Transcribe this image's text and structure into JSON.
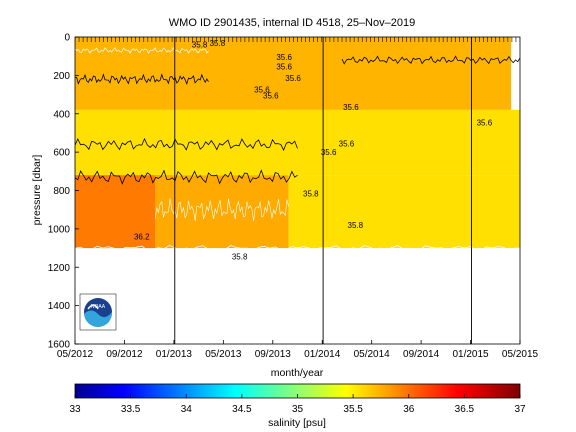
{
  "chart_data": {
    "type": "heatmap",
    "title": "WMO ID 2901435, internal ID 4518, 25–Nov–2019",
    "xlabel": "month/year",
    "ylabel": "pressure [dbar]",
    "x_ticks": [
      "05/2012",
      "09/2012",
      "01/2013",
      "05/2013",
      "09/2013",
      "01/2014",
      "05/2014",
      "09/2014",
      "01/2015",
      "05/2015"
    ],
    "y_ticks": [
      "0",
      "200",
      "400",
      "600",
      "800",
      "1000",
      "1200",
      "1400",
      "1600"
    ],
    "ylim": [
      1600,
      0
    ],
    "xlim": [
      "2012-05",
      "2015-05"
    ],
    "year_boundaries": [
      "2013-01",
      "2014-01",
      "2015-01"
    ],
    "colorbar": {
      "label": "salinity [psu]",
      "ticks": [
        "33",
        "33.5",
        "34",
        "34.5",
        "35",
        "35.5",
        "36",
        "36.5",
        "37"
      ],
      "range": [
        33,
        37
      ],
      "colormap": "jet"
    },
    "contour_labels": [
      "35.8",
      "35.8",
      "35.6",
      "35.6",
      "35.6",
      "35.6",
      "35.6",
      "35.6",
      "35.6",
      "35.6",
      "35.8",
      "35.8",
      "35.8",
      "35.6",
      "36.2"
    ],
    "regions": [
      {
        "t0": 0.0,
        "t1": 0.98,
        "p0": 0,
        "p1": 380,
        "salinity": 35.85,
        "color": "#ffb400"
      },
      {
        "t0": 0.0,
        "t1": 0.22,
        "p0": 560,
        "p1": 1100,
        "salinity": 35.9,
        "color": "#ffa800"
      },
      {
        "t0": 0.0,
        "t1": 0.18,
        "p0": 720,
        "p1": 1100,
        "salinity": 36.2,
        "color": "#ff7a00"
      },
      {
        "t0": 0.18,
        "t1": 0.48,
        "p0": 720,
        "p1": 1100,
        "salinity": 35.9,
        "color": "#ffaa00"
      },
      {
        "t0": 0.0,
        "t1": 1.0,
        "p0": 380,
        "p1": 720,
        "salinity": 35.6,
        "color": "#ffe000"
      },
      {
        "t0": 0.48,
        "t1": 1.0,
        "p0": 720,
        "p1": 1100,
        "salinity": 35.6,
        "color": "#ffe000"
      }
    ],
    "logo": "noaa-logo"
  }
}
